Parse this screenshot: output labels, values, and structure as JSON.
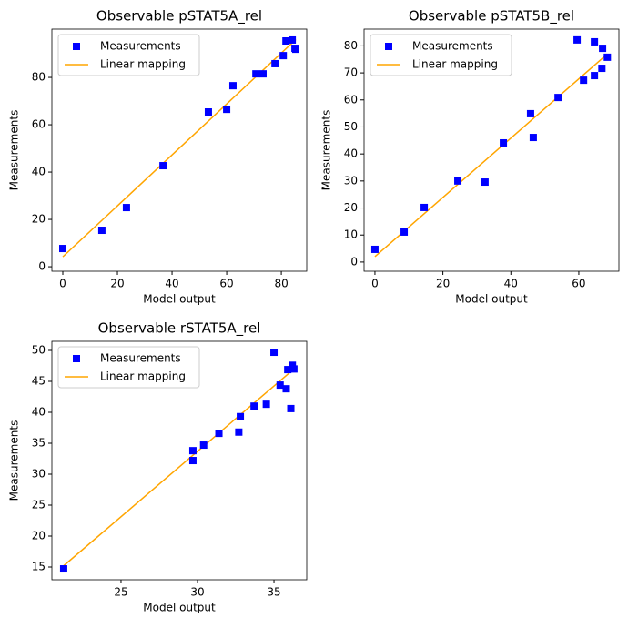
{
  "chart_data": [
    {
      "type": "scatter",
      "title": "Observable pSTAT5A_rel",
      "xlabel": "Model output",
      "ylabel": "Measurements",
      "xlim": [
        -4,
        89.3
      ],
      "xticks": [
        0,
        20,
        40,
        60,
        80
      ],
      "ylim": [
        -1.9,
        100.4
      ],
      "yticks": [
        0,
        20,
        40,
        60,
        80
      ],
      "legend": "upper left",
      "series": [
        {
          "name": "Measurements",
          "color": "#0000ff",
          "x": [
            0,
            14.3,
            23.3,
            36.7,
            53.3,
            60,
            62.3,
            70.7,
            73.3,
            77.7,
            80.7,
            81.7,
            84,
            85,
            85.3
          ],
          "values": [
            7.7,
            15.4,
            25,
            42.7,
            65.4,
            66.5,
            76.5,
            81.5,
            81.5,
            85.8,
            89.2,
            95.4,
            95.8,
            92.3,
            91.9
          ]
        },
        {
          "name": "Linear mapping",
          "color": "#ffa500",
          "x": [
            0,
            85.3
          ],
          "values": [
            4.2,
            96
          ]
        }
      ]
    },
    {
      "type": "scatter",
      "title": "Observable pSTAT5B_rel",
      "xlabel": "Model output",
      "ylabel": "Measurements",
      "xlim": [
        -3.2,
        71.8
      ],
      "xticks": [
        0,
        20,
        40,
        60
      ],
      "ylim": [
        -3.4,
        86.2
      ],
      "yticks": [
        0,
        10,
        20,
        30,
        40,
        50,
        60,
        70,
        80
      ],
      "legend": "upper left",
      "series": [
        {
          "name": "Measurements",
          "color": "#0000ff",
          "x": [
            0,
            8.6,
            14.5,
            24.4,
            32.4,
            37.8,
            45.8,
            46.6,
            53.9,
            59.5,
            61.4,
            64.6,
            64.6,
            66.8,
            67,
            68.4
          ],
          "values": [
            4.7,
            11.1,
            20.2,
            30,
            29.6,
            44.1,
            54.9,
            46.1,
            60.9,
            82.2,
            67.3,
            81.5,
            69,
            71.7,
            79.1,
            75.8
          ]
        },
        {
          "name": "Linear mapping",
          "color": "#ffa500",
          "x": [
            0,
            68.4
          ],
          "values": [
            2,
            77
          ]
        }
      ]
    },
    {
      "type": "scatter",
      "title": "Observable rSTAT5A_rel",
      "xlabel": "Model output",
      "ylabel": "Measurements",
      "xlim": [
        20.48,
        37.14
      ],
      "xticks": [
        25,
        30,
        35
      ],
      "ylim": [
        12.94,
        51.47
      ],
      "yticks": [
        15,
        20,
        25,
        30,
        35,
        40,
        45,
        50
      ],
      "legend": "upper left",
      "series": [
        {
          "name": "Measurements",
          "color": "#0000ff",
          "x": [
            21.25,
            29.7,
            29.7,
            30.4,
            31.4,
            32.7,
            32.8,
            33.7,
            34.5,
            35,
            35.4,
            35.8,
            35.9,
            36.1,
            36.2,
            36.3
          ],
          "values": [
            14.7,
            32.2,
            33.8,
            34.7,
            36.6,
            36.8,
            39.3,
            41.0,
            41.3,
            49.7,
            44.4,
            43.8,
            46.9,
            40.6,
            47.6,
            47
          ]
        },
        {
          "name": "Linear mapping",
          "color": "#ffa500",
          "x": [
            21.25,
            36.3
          ],
          "values": [
            15.2,
            47
          ]
        }
      ]
    }
  ]
}
